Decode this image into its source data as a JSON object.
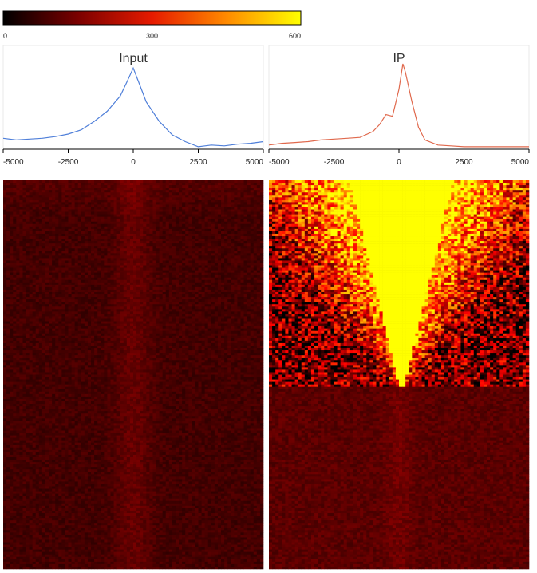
{
  "colorbar": {
    "ticks": [
      {
        "value": 0,
        "label": "0"
      },
      {
        "value": 300,
        "label": "300"
      },
      {
        "value": 600,
        "label": "600"
      }
    ],
    "range": [
      0,
      600
    ],
    "colormap": "hot",
    "stops": [
      "#000000",
      "#7a0000",
      "#e61a00",
      "#ff8a00",
      "#ffff00"
    ]
  },
  "chart_data": [
    {
      "type": "line",
      "title": "Input",
      "xlim": [
        -5000,
        5000
      ],
      "x_ticks": [
        -5000,
        -2500,
        0,
        2500,
        5000
      ],
      "x_tick_labels": [
        "-5000",
        "-2500",
        "0",
        "2500",
        "5000"
      ],
      "line_color": "#4f7fd9",
      "series": [
        {
          "x": [
            -5000,
            -4500,
            -4000,
            -3500,
            -3000,
            -2500,
            -2000,
            -1500,
            -1000,
            -500,
            -250,
            0,
            250,
            500,
            1000,
            1500,
            2000,
            2500,
            3000,
            3500,
            4000,
            4500,
            5000
          ],
          "values": [
            0.12,
            0.1,
            0.11,
            0.12,
            0.14,
            0.17,
            0.22,
            0.32,
            0.44,
            0.62,
            0.78,
            0.95,
            0.75,
            0.55,
            0.32,
            0.16,
            0.08,
            0.02,
            0.04,
            0.03,
            0.05,
            0.06,
            0.08
          ]
        }
      ],
      "ylim": [
        0,
        1
      ],
      "heatmap": {
        "type": "heatmap",
        "description_values": "signal near 0 over the full range, slight elevation around x=0",
        "baseline_level": 60,
        "center_level": 90,
        "max_level": 600
      }
    },
    {
      "type": "line",
      "title": "IP",
      "xlim": [
        -5000,
        5000
      ],
      "x_ticks": [
        -5000,
        -2500,
        0,
        2500,
        5000
      ],
      "x_tick_labels": [
        "-5000",
        "-2500",
        "0",
        "2500",
        "5000"
      ],
      "line_color": "#e0694d",
      "series": [
        {
          "x": [
            -5000,
            -4500,
            -4000,
            -3500,
            -3000,
            -2500,
            -2000,
            -1500,
            -1000,
            -750,
            -500,
            -250,
            0,
            150,
            250,
            500,
            750,
            1000,
            1500,
            2000,
            2500,
            3000,
            3500,
            4000,
            4500,
            5000
          ],
          "values": [
            0.04,
            0.06,
            0.07,
            0.08,
            0.1,
            0.11,
            0.12,
            0.13,
            0.2,
            0.28,
            0.4,
            0.38,
            0.7,
            1.0,
            0.9,
            0.55,
            0.25,
            0.1,
            0.04,
            0.03,
            0.02,
            0.02,
            0.02,
            0.02,
            0.02,
            0.02
          ]
        }
      ],
      "ylim": [
        0,
        1
      ],
      "heatmap": {
        "type": "heatmap",
        "saturated_level": 600,
        "background_level": 80,
        "max_level": 600
      }
    }
  ]
}
